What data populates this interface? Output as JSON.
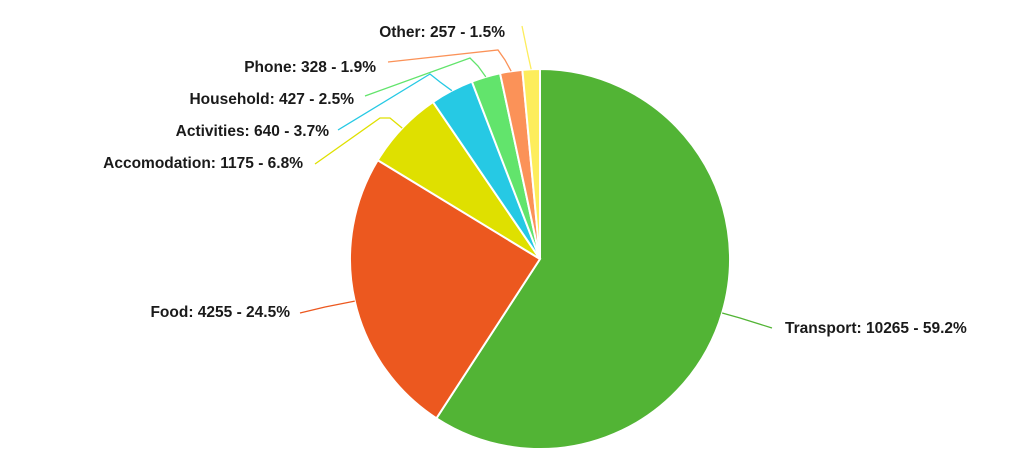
{
  "chart_data": {
    "type": "pie",
    "title": "",
    "start_angle_deg": 0,
    "direction": "clockwise",
    "slices": [
      {
        "name": "Transport",
        "value": 10265,
        "percent": "59.2%",
        "label": "Transport: 10265 - 59.2%",
        "color": "#52b435"
      },
      {
        "name": "Food",
        "value": 4255,
        "percent": "24.5%",
        "label": "Food: 4255 - 24.5%",
        "color": "#ec581f"
      },
      {
        "name": "Accomodation",
        "value": 1175,
        "percent": "6.8%",
        "label": "Accomodation: 1175 - 6.8%",
        "color": "#dfe000"
      },
      {
        "name": "Activities",
        "value": 640,
        "percent": "3.7%",
        "label": "Activities: 640 - 3.7%",
        "color": "#26c9e4"
      },
      {
        "name": "Household",
        "value": 427,
        "percent": "2.5%",
        "label": "Household: 427 - 2.5%",
        "color": "#62e46c"
      },
      {
        "name": "Phone",
        "value": 328,
        "percent": "1.9%",
        "label": "Phone: 328 - 1.9%",
        "color": "#fb9258"
      },
      {
        "name": "Other",
        "value": 257,
        "percent": "1.5%",
        "label": "Other: 257 - 1.5%",
        "color": "#fded5c"
      }
    ]
  }
}
